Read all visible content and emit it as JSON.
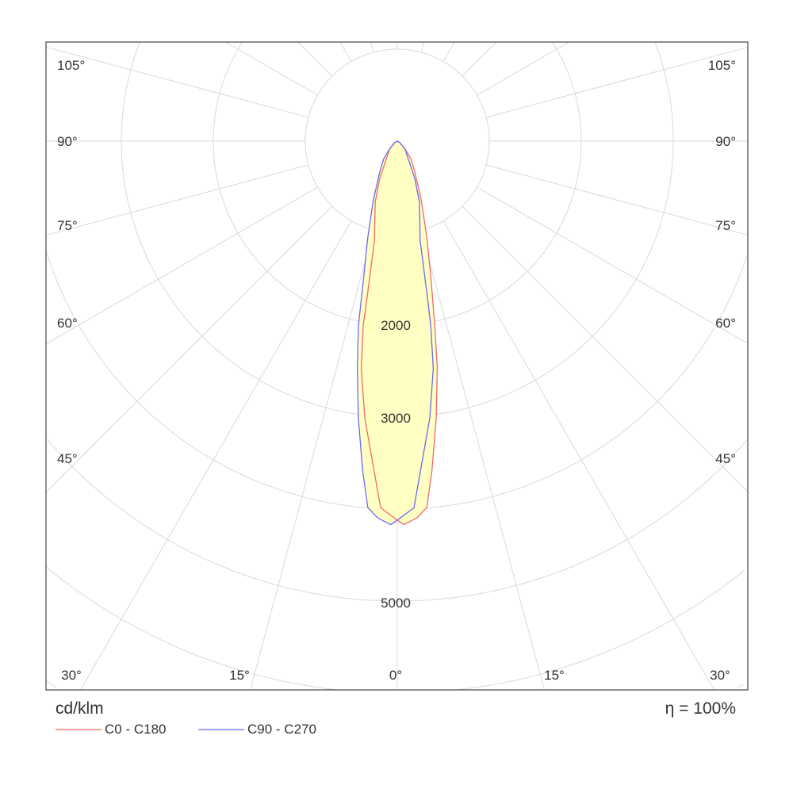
{
  "chart_data": {
    "type": "polar",
    "title": "",
    "unit_label": "cd/klm",
    "efficiency_label": "η = 100%",
    "radial_ticks": [
      1000,
      2000,
      3000,
      4000,
      5000,
      6000,
      7000,
      8000
    ],
    "radial_tick_labels": [
      "2000",
      "3000",
      "5000"
    ],
    "angle_step_deg": 15,
    "angle_labels_left": [
      "105°",
      "90°",
      "75°",
      "60°",
      "45°"
    ],
    "angle_labels_right": [
      "105°",
      "90°",
      "75°",
      "60°",
      "45°"
    ],
    "angle_labels_bottom": [
      "30°",
      "15°",
      "0°",
      "15°",
      "30°"
    ],
    "fill_color": "#ffffc4",
    "grid_color": "#d9d9d9",
    "series": [
      {
        "name": "C0 - C180",
        "color": "#f06a6a",
        "angles": [
          -90,
          -60,
          -45,
          -35,
          -30,
          -25,
          -20,
          -15,
          -13,
          -11,
          -10.5,
          -9,
          -6.7,
          -4,
          -2.6,
          0,
          1,
          3,
          4.6,
          6,
          8,
          10,
          11.5,
          14,
          17,
          22,
          30,
          37.7,
          45,
          60,
          90
        ],
        "values": [
          0,
          30,
          120,
          180,
          260,
          450,
          700,
          950,
          1100,
          1700,
          2030,
          2500,
          3030,
          3600,
          3990,
          4120,
          4170,
          4100,
          3995,
          3600,
          3040,
          2500,
          2040,
          1500,
          1100,
          700,
          380,
          240,
          120,
          30,
          0
        ]
      },
      {
        "name": "C90 - C270",
        "color": "#6a6af0",
        "angles": [
          -90,
          -60,
          -45,
          -37.7,
          -30,
          -22,
          -17,
          -14,
          -11.9,
          -10,
          -8,
          -6,
          -4.6,
          -3,
          -1,
          0,
          2.6,
          4,
          6.7,
          9,
          10.3,
          11,
          13,
          15,
          20,
          25,
          30,
          35,
          45,
          60,
          90
        ],
        "values": [
          0,
          30,
          120,
          240,
          380,
          700,
          1100,
          1500,
          2050,
          2500,
          3040,
          3600,
          3995,
          4100,
          4170,
          4120,
          3990,
          3600,
          3030,
          2500,
          2030,
          1700,
          1100,
          950,
          700,
          450,
          260,
          180,
          120,
          30,
          0
        ]
      }
    ]
  }
}
